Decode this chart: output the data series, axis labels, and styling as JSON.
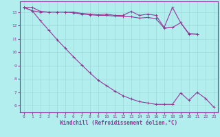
{
  "xlabel": "Windchill (Refroidissement éolien,°C)",
  "background_color": "#b2eeee",
  "grid_color": "#c0e8e8",
  "line_color": "#993399",
  "x_values": [
    0,
    1,
    2,
    3,
    4,
    5,
    6,
    7,
    8,
    9,
    10,
    11,
    12,
    13,
    14,
    15,
    16,
    17,
    18,
    19,
    20,
    21,
    22,
    23
  ],
  "line1_y": [
    13.35,
    13.35,
    13.05,
    13.0,
    13.0,
    13.0,
    13.0,
    12.9,
    12.85,
    12.8,
    12.85,
    12.75,
    12.75,
    13.05,
    12.75,
    12.85,
    12.75,
    11.85,
    13.35,
    12.2,
    11.4,
    11.35,
    null,
    null
  ],
  "line2_y": [
    13.35,
    13.1,
    13.0,
    13.0,
    13.0,
    13.0,
    12.95,
    12.85,
    12.8,
    12.75,
    12.75,
    12.7,
    12.65,
    12.65,
    12.55,
    12.6,
    12.5,
    11.8,
    11.85,
    12.2,
    11.35,
    11.35,
    null,
    null
  ],
  "line3_y": [
    13.35,
    13.1,
    12.35,
    11.65,
    10.95,
    10.3,
    9.65,
    9.05,
    8.45,
    7.9,
    7.5,
    7.1,
    6.75,
    6.5,
    6.3,
    6.2,
    6.1,
    6.1,
    6.1,
    6.95,
    6.4,
    7.0,
    6.55,
    5.9
  ],
  "ylim": [
    5.5,
    13.8
  ],
  "xlim": [
    -0.5,
    23.5
  ],
  "yticks": [
    6,
    7,
    8,
    9,
    10,
    11,
    12,
    13
  ],
  "xticks": [
    0,
    1,
    2,
    3,
    4,
    5,
    6,
    7,
    8,
    9,
    10,
    11,
    12,
    13,
    14,
    15,
    16,
    17,
    18,
    19,
    20,
    21,
    22,
    23
  ]
}
